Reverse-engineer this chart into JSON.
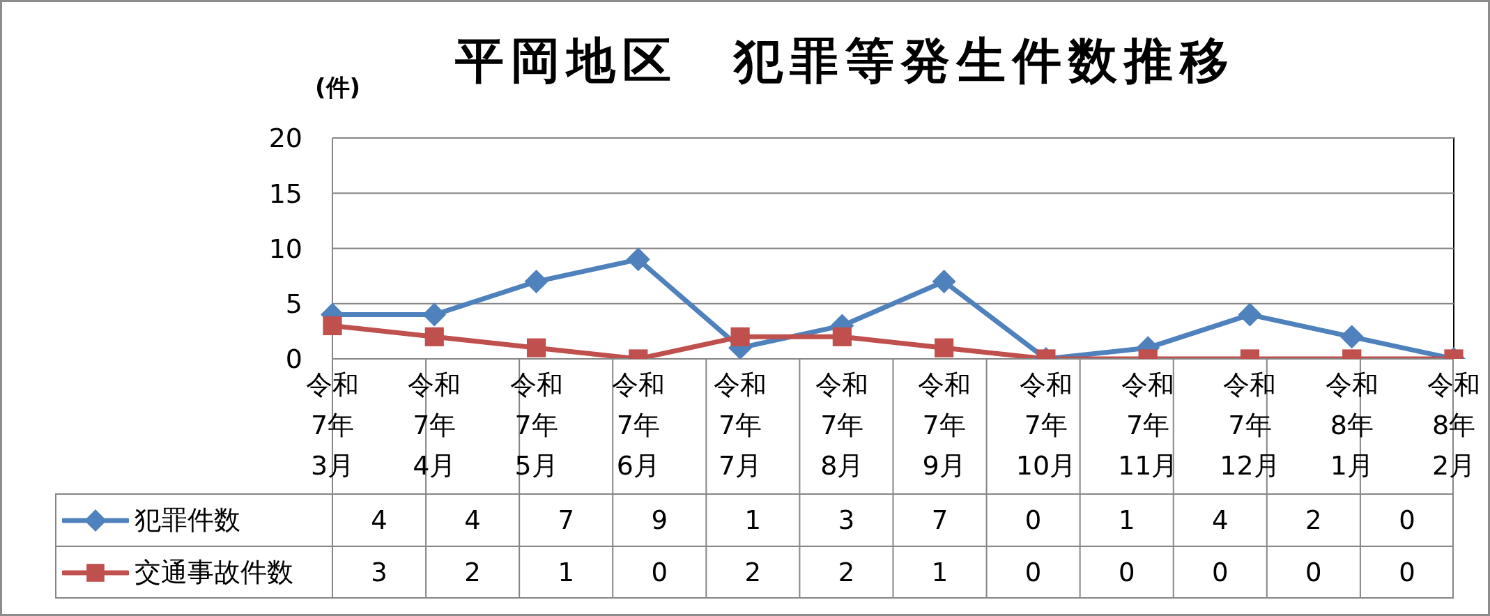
{
  "chart_data": {
    "type": "line",
    "title": "平岡地区　犯罪等発生件数推移",
    "ylabel": "(件)",
    "categories": [
      "令和7年3月",
      "令和7年4月",
      "令和7年5月",
      "令和7年6月",
      "令和7年7月",
      "令和7年8月",
      "令和7年9月",
      "令和7年10月",
      "令和7年11月",
      "令和7年12月",
      "令和8年1月",
      "令和8年2月"
    ],
    "series": [
      {
        "name": "犯罪件数",
        "color": "#4f81bd",
        "marker": "diamond",
        "values": [
          4,
          4,
          7,
          9,
          1,
          3,
          7,
          0,
          1,
          4,
          2,
          0
        ]
      },
      {
        "name": "交通事故件数",
        "color": "#c0504d",
        "marker": "square",
        "values": [
          3,
          2,
          1,
          0,
          2,
          2,
          1,
          0,
          0,
          0,
          0,
          0
        ]
      }
    ],
    "ylim": [
      0,
      20
    ],
    "yticks": [
      0,
      5,
      10,
      15,
      20
    ],
    "grid": "y",
    "legend": "bottom left",
    "data_labels": true,
    "line_style": "solid"
  }
}
